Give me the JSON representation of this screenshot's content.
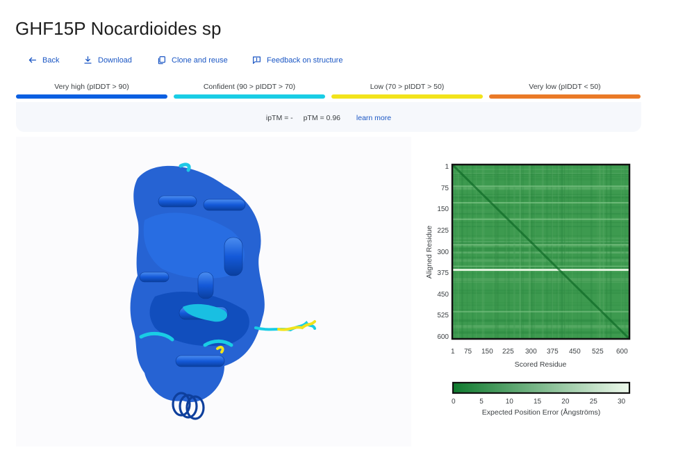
{
  "page": {
    "title": "GHF15P Nocardioides sp"
  },
  "toolbar": {
    "back": "Back",
    "download": "Download",
    "clone": "Clone and reuse",
    "feedback": "Feedback on structure"
  },
  "legend": {
    "items": [
      {
        "label": "Very high (pIDDT > 90)",
        "color": "#0b5fe1"
      },
      {
        "label": "Confident (90 > pIDDT > 70)",
        "color": "#19cde5"
      },
      {
        "label": "Low (70 > pIDDT > 50)",
        "color": "#f2e31b"
      },
      {
        "label": "Very low (pIDDT < 50)",
        "color": "#ea7a27"
      }
    ]
  },
  "metrics": {
    "iptm": "ipTM = -",
    "ptm": "pTM = 0.96",
    "learn_more": "learn more"
  },
  "pae_chart": {
    "y_ticks": [
      "1",
      "75",
      "150",
      "225",
      "300",
      "375",
      "450",
      "525",
      "600"
    ],
    "x_ticks": [
      "1",
      "75",
      "150",
      "225",
      "300",
      "375",
      "450",
      "525",
      "600"
    ],
    "y_title": "Aligned Residue",
    "x_title": "Scored Residue",
    "colorbar_ticks": [
      "0",
      "5",
      "10",
      "15",
      "20",
      "25",
      "30"
    ],
    "colorbar_title": "Expected Position Error (Ångströms)",
    "color_low": "#0f7a2e",
    "color_high": "#eef9ec"
  }
}
